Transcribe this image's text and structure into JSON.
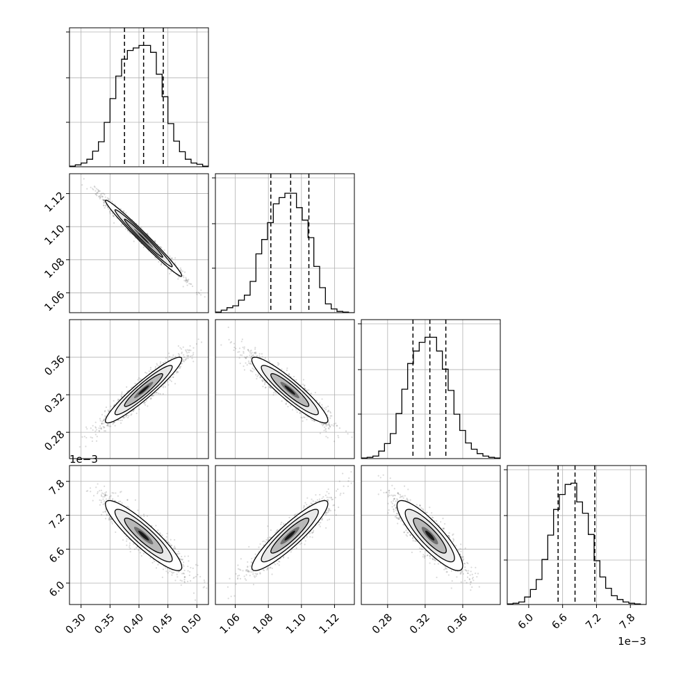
{
  "chart_data": {
    "type": "corner",
    "truth_lines": "none",
    "grid": true,
    "parameters": [
      {
        "index": 0,
        "range": [
          0.28,
          0.52
        ],
        "ticks": [
          0.3,
          0.35,
          0.4,
          0.45,
          0.5
        ],
        "tick_labels": [
          "0.30",
          "0.35",
          "0.40",
          "0.45",
          "0.50"
        ],
        "exponent_label": "",
        "quantiles": [
          0.375,
          0.408,
          0.442
        ],
        "mean": 0.408,
        "sd": 0.033
      },
      {
        "index": 1,
        "range": [
          1.048,
          1.132
        ],
        "ticks": [
          1.06,
          1.08,
          1.1,
          1.12
        ],
        "tick_labels": [
          "1.06",
          "1.08",
          "1.10",
          "1.12"
        ],
        "exponent_label": "",
        "quantiles": [
          1.0815,
          1.0935,
          1.1045
        ],
        "mean": 1.093,
        "sd": 0.0115
      },
      {
        "index": 2,
        "range": [
          0.252,
          0.4
        ],
        "ticks": [
          0.28,
          0.32,
          0.36
        ],
        "tick_labels": [
          "0.28",
          "0.32",
          "0.36"
        ],
        "exponent_label": "",
        "quantiles": [
          0.307,
          0.325,
          0.342
        ],
        "mean": 0.325,
        "sd": 0.0175
      },
      {
        "index": 3,
        "range": [
          5.62,
          8.08
        ],
        "ticks": [
          6.0,
          6.6,
          7.2,
          7.8
        ],
        "tick_labels": [
          "6.0",
          "6.6",
          "7.2",
          "7.8"
        ],
        "exponent_label": "1e−3",
        "quantiles": [
          6.52,
          6.82,
          7.17
        ],
        "mean": 6.84,
        "sd": 0.31
      }
    ],
    "correlations": {
      "0-1": -0.985,
      "0-2": 0.94,
      "0-3": -0.9,
      "1-2": -0.92,
      "1-3": 0.91,
      "2-3": -0.86
    },
    "histograms": {
      "0": [
        0.005,
        0.015,
        0.03,
        0.06,
        0.125,
        0.2,
        0.355,
        0.545,
        0.725,
        0.86,
        0.93,
        0.95,
        0.97,
        0.97,
        0.915,
        0.74,
        0.56,
        0.345,
        0.205,
        0.12,
        0.06,
        0.03,
        0.02,
        0.005
      ],
      "1": [
        0.005,
        0.02,
        0.04,
        0.055,
        0.1,
        0.14,
        0.25,
        0.47,
        0.585,
        0.72,
        0.87,
        0.92,
        0.955,
        0.955,
        0.84,
        0.74,
        0.6,
        0.37,
        0.2,
        0.07,
        0.03,
        0.01,
        0.005,
        0.0
      ],
      "2": [
        0.005,
        0.01,
        0.02,
        0.06,
        0.12,
        0.2,
        0.36,
        0.555,
        0.76,
        0.86,
        0.93,
        0.97,
        0.97,
        0.86,
        0.715,
        0.545,
        0.355,
        0.225,
        0.125,
        0.075,
        0.04,
        0.02,
        0.01,
        0.005
      ],
      "3": [
        0.005,
        0.01,
        0.02,
        0.06,
        0.12,
        0.2,
        0.36,
        0.555,
        0.76,
        0.88,
        0.96,
        0.97,
        0.82,
        0.73,
        0.56,
        0.35,
        0.22,
        0.13,
        0.07,
        0.04,
        0.02,
        0.01,
        0.005,
        0.0
      ]
    },
    "contour_levels_sigma": [
      0.5,
      1.0,
      1.5,
      2.0
    ]
  }
}
